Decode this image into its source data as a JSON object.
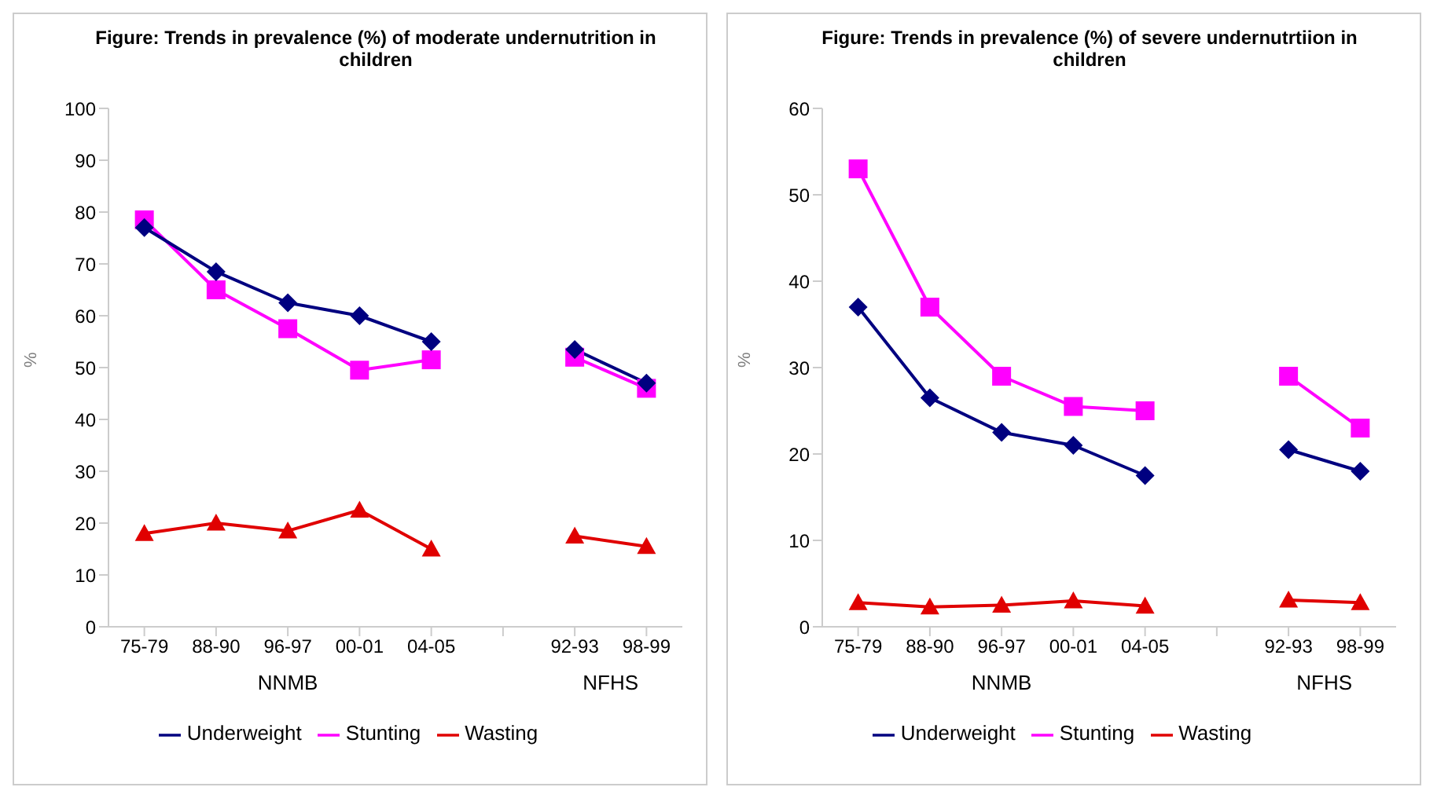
{
  "chart_data": [
    {
      "type": "line",
      "title": "Figure: Trends in prevalence (%) of moderate  undernutrition in children",
      "ylabel": "%",
      "categories": [
        "75-79",
        "88-90",
        "96-97",
        "00-01",
        "04-05",
        null,
        "92-93",
        "98-99"
      ],
      "ylim": [
        0,
        100
      ],
      "yticks": [
        0,
        10,
        20,
        30,
        40,
        50,
        60,
        70,
        80,
        90,
        100
      ],
      "grid": false,
      "legend": "bottom",
      "annotations": [
        "NNMB",
        "NFHS"
      ],
      "series": [
        {
          "name": "Underweight",
          "color": "#000080",
          "marker": "diamond",
          "values": [
            77,
            68.5,
            62.5,
            60,
            55,
            null,
            53.5,
            47
          ]
        },
        {
          "name": "Stunting",
          "color": "#ff00ff",
          "marker": "square",
          "values": [
            78.5,
            65,
            57.5,
            49.5,
            51.5,
            null,
            52,
            46
          ]
        },
        {
          "name": "Wasting",
          "color": "#e00000",
          "marker": "triangle",
          "values": [
            18,
            20,
            18.5,
            22.5,
            15,
            null,
            17.5,
            15.5
          ]
        }
      ]
    },
    {
      "type": "line",
      "title": "Figure: Trends in prevalence (%) of severe undernutrtiion in children",
      "ylabel": "%",
      "categories": [
        "75-79",
        "88-90",
        "96-97",
        "00-01",
        "04-05",
        null,
        "92-93",
        "98-99"
      ],
      "ylim": [
        0,
        60
      ],
      "yticks": [
        0,
        10,
        20,
        30,
        40,
        50,
        60
      ],
      "grid": false,
      "legend": "bottom",
      "annotations": [
        "NNMB",
        "NFHS"
      ],
      "series": [
        {
          "name": "Underweight",
          "color": "#000080",
          "marker": "diamond",
          "values": [
            37,
            26.5,
            22.5,
            21,
            17.5,
            null,
            20.5,
            18
          ]
        },
        {
          "name": "Stunting",
          "color": "#ff00ff",
          "marker": "square",
          "values": [
            53,
            37,
            29,
            25.5,
            25,
            null,
            29,
            23
          ]
        },
        {
          "name": "Wasting",
          "color": "#e00000",
          "marker": "triangle",
          "values": [
            2.8,
            2.3,
            2.5,
            3,
            2.4,
            null,
            3.1,
            2.8
          ]
        }
      ]
    }
  ]
}
